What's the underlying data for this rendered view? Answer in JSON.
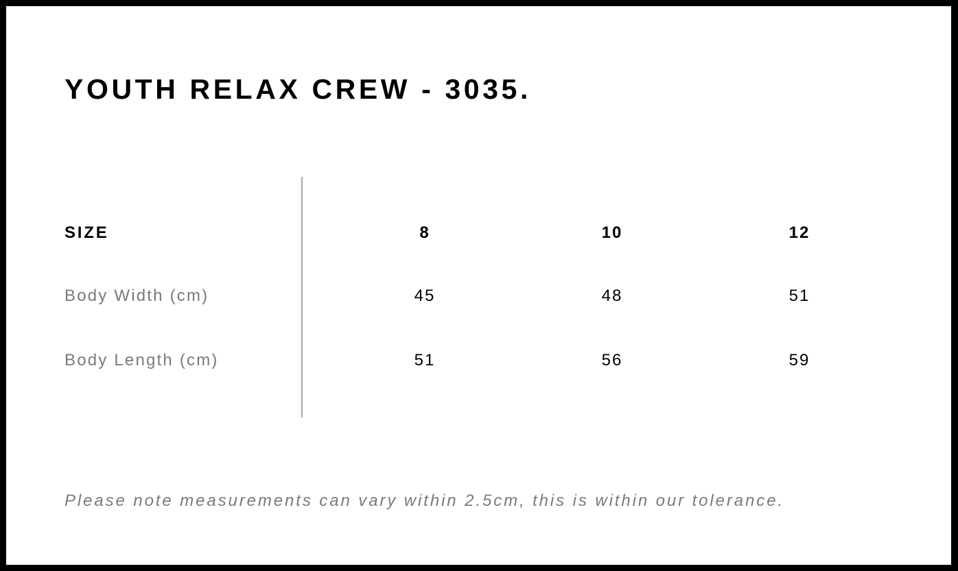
{
  "title": "YOUTH RELAX CREW - 3035.",
  "table": {
    "header": {
      "label": "SIZE",
      "sizes": [
        "8",
        "10",
        "12"
      ]
    },
    "rows": [
      {
        "label": "Body Width (cm)",
        "values": [
          "45",
          "48",
          "51"
        ]
      },
      {
        "label": "Body Length (cm)",
        "values": [
          "51",
          "56",
          "59"
        ]
      }
    ]
  },
  "note": "Please note measurements can vary within 2.5cm, this is within our tolerance.",
  "colors": {
    "border": "#000000",
    "label_gray": "#7a7a7a",
    "divider": "#a8a8a8"
  }
}
